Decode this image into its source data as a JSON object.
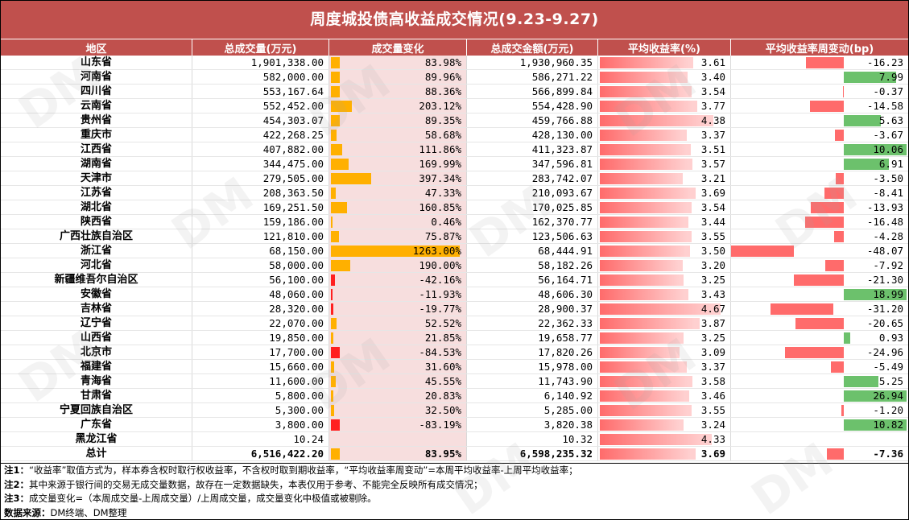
{
  "title": "周度城投债高收益成交情况(9.23-9.27)",
  "headers": [
    "地区",
    "总成交量(万元)",
    "成交量变化",
    "总成交金额(万元)",
    "平均收益率(%)",
    "平均收益率周变动(bp)"
  ],
  "rows": [
    {
      "region": "山东省",
      "volume": "1,901,338.00",
      "vol_change": "83.98%",
      "amount": "1,930,960.35",
      "yield": "3.61",
      "yield_change": "-16.23",
      "vc": 83.98,
      "y": 3.61,
      "yc": -16.23
    },
    {
      "region": "河南省",
      "volume": "582,000.00",
      "vol_change": "89.96%",
      "amount": "586,271.22",
      "yield": "3.40",
      "yield_change": "7.99",
      "vc": 89.96,
      "y": 3.4,
      "yc": 7.99
    },
    {
      "region": "四川省",
      "volume": "553,167.64",
      "vol_change": "88.36%",
      "amount": "566,899.84",
      "yield": "3.54",
      "yield_change": "-0.37",
      "vc": 88.36,
      "y": 3.54,
      "yc": -0.37
    },
    {
      "region": "云南省",
      "volume": "552,452.00",
      "vol_change": "203.12%",
      "amount": "554,428.90",
      "yield": "3.77",
      "yield_change": "-14.58",
      "vc": 203.12,
      "y": 3.77,
      "yc": -14.58
    },
    {
      "region": "贵州省",
      "volume": "454,303.07",
      "vol_change": "89.35%",
      "amount": "459,766.88",
      "yield": "4.38",
      "yield_change": "5.63",
      "vc": 89.35,
      "y": 4.38,
      "yc": 5.63
    },
    {
      "region": "重庆市",
      "volume": "422,268.25",
      "vol_change": "58.68%",
      "amount": "428,130.00",
      "yield": "3.37",
      "yield_change": "-3.67",
      "vc": 58.68,
      "y": 3.37,
      "yc": -3.67
    },
    {
      "region": "江西省",
      "volume": "407,882.00",
      "vol_change": "111.86%",
      "amount": "411,323.87",
      "yield": "3.51",
      "yield_change": "10.06",
      "vc": 111.86,
      "y": 3.51,
      "yc": 10.06
    },
    {
      "region": "湖南省",
      "volume": "344,475.00",
      "vol_change": "169.99%",
      "amount": "347,596.81",
      "yield": "3.57",
      "yield_change": "6.91",
      "vc": 169.99,
      "y": 3.57,
      "yc": 6.91
    },
    {
      "region": "天津市",
      "volume": "279,505.00",
      "vol_change": "397.34%",
      "amount": "283,742.07",
      "yield": "3.21",
      "yield_change": "-3.50",
      "vc": 397.34,
      "y": 3.21,
      "yc": -3.5
    },
    {
      "region": "江苏省",
      "volume": "208,363.50",
      "vol_change": "47.33%",
      "amount": "210,093.67",
      "yield": "3.69",
      "yield_change": "-8.41",
      "vc": 47.33,
      "y": 3.69,
      "yc": -8.41
    },
    {
      "region": "湖北省",
      "volume": "169,251.50",
      "vol_change": "160.85%",
      "amount": "170,025.85",
      "yield": "3.54",
      "yield_change": "-13.93",
      "vc": 160.85,
      "y": 3.54,
      "yc": -13.93
    },
    {
      "region": "陕西省",
      "volume": "159,186.00",
      "vol_change": "0.46%",
      "amount": "162,370.77",
      "yield": "3.44",
      "yield_change": "-16.48",
      "vc": 0.46,
      "y": 3.44,
      "yc": -16.48
    },
    {
      "region": "广西壮族自治区",
      "volume": "121,810.00",
      "vol_change": "75.87%",
      "amount": "123,506.63",
      "yield": "3.55",
      "yield_change": "-4.28",
      "vc": 75.87,
      "y": 3.55,
      "yc": -4.28
    },
    {
      "region": "浙江省",
      "volume": "68,150.00",
      "vol_change": "1263.00%",
      "amount": "68,444.91",
      "yield": "3.50",
      "yield_change": "-48.07",
      "vc": 1263.0,
      "y": 3.5,
      "yc": -48.07
    },
    {
      "region": "河北省",
      "volume": "58,000.00",
      "vol_change": "190.00%",
      "amount": "58,182.26",
      "yield": "3.20",
      "yield_change": "-7.92",
      "vc": 190.0,
      "y": 3.2,
      "yc": -7.92
    },
    {
      "region": "新疆维吾尔自治区",
      "volume": "56,100.00",
      "vol_change": "-42.16%",
      "amount": "56,164.71",
      "yield": "3.25",
      "yield_change": "-21.30",
      "vc": -42.16,
      "y": 3.25,
      "yc": -21.3
    },
    {
      "region": "安徽省",
      "volume": "48,060.00",
      "vol_change": "-11.93%",
      "amount": "48,606.30",
      "yield": "3.43",
      "yield_change": "18.99",
      "vc": -11.93,
      "y": 3.43,
      "yc": 18.99
    },
    {
      "region": "吉林省",
      "volume": "28,320.00",
      "vol_change": "-19.77%",
      "amount": "28,900.37",
      "yield": "4.67",
      "yield_change": "-31.20",
      "vc": -19.77,
      "y": 4.67,
      "yc": -31.2
    },
    {
      "region": "辽宁省",
      "volume": "22,070.00",
      "vol_change": "52.52%",
      "amount": "22,362.33",
      "yield": "3.87",
      "yield_change": "-20.65",
      "vc": 52.52,
      "y": 3.87,
      "yc": -20.65
    },
    {
      "region": "山西省",
      "volume": "19,850.00",
      "vol_change": "21.85%",
      "amount": "19,658.77",
      "yield": "3.25",
      "yield_change": "0.93",
      "vc": 21.85,
      "y": 3.25,
      "yc": 0.93
    },
    {
      "region": "北京市",
      "volume": "17,700.00",
      "vol_change": "-84.53%",
      "amount": "17,820.26",
      "yield": "3.09",
      "yield_change": "-24.96",
      "vc": -84.53,
      "y": 3.09,
      "yc": -24.96
    },
    {
      "region": "福建省",
      "volume": "15,660.00",
      "vol_change": "31.60%",
      "amount": "15,978.00",
      "yield": "3.37",
      "yield_change": "-5.49",
      "vc": 31.6,
      "y": 3.37,
      "yc": -5.49
    },
    {
      "region": "青海省",
      "volume": "11,600.00",
      "vol_change": "45.55%",
      "amount": "11,743.90",
      "yield": "3.58",
      "yield_change": "5.25",
      "vc": 45.55,
      "y": 3.58,
      "yc": 5.25
    },
    {
      "region": "甘肃省",
      "volume": "5,800.00",
      "vol_change": "20.83%",
      "amount": "6,140.92",
      "yield": "3.46",
      "yield_change": "26.94",
      "vc": 20.83,
      "y": 3.46,
      "yc": 26.94
    },
    {
      "region": "宁夏回族自治区",
      "volume": "5,300.00",
      "vol_change": "32.50%",
      "amount": "5,285.00",
      "yield": "3.55",
      "yield_change": "-1.20",
      "vc": 32.5,
      "y": 3.55,
      "yc": -1.2
    },
    {
      "region": "广东省",
      "volume": "3,800.00",
      "vol_change": "-83.19%",
      "amount": "3,820.38",
      "yield": "3.24",
      "yield_change": "10.82",
      "vc": -83.19,
      "y": 3.24,
      "yc": 10.82
    },
    {
      "region": "黑龙江省",
      "volume": "10.24",
      "vol_change": "",
      "amount": "10.32",
      "yield": "4.33",
      "yield_change": "",
      "vc": null,
      "y": 4.33,
      "yc": null
    }
  ],
  "total": {
    "region": "总计",
    "volume": "6,516,422.20",
    "vol_change": "83.95%",
    "amount": "6,598,235.32",
    "yield": "3.69",
    "yield_change": "-7.36",
    "vc": 83.95,
    "y": 3.69,
    "yc": -7.36
  },
  "notes": {
    "n1_label": "注1：",
    "n1": "“收益率”取值方式为，样本券含权时取行权收益率，不含权时取到期收益率，“平均收益率周变动”=本周平均收益率-上周平均收益率；",
    "n2_label": "注2：",
    "n2": "其中来源于银行间的交易无成交量数据，故存在一定数据缺失，本表仅用于参考、不能完全反映所有成交情况；",
    "n3_label": "注3：",
    "n3": "成交量变化=（本周成交量-上周成交量）/上周成交量，成交量变化中极值或被剔除。",
    "src_label": "数据来源：",
    "src": "DM终端、DM整理"
  },
  "watermark": "DM",
  "colors": {
    "header": "#c0504d",
    "vol_bar": "#ffb000",
    "neg_bar": "#ff2020",
    "yield_bar": "#ff6b6b",
    "chg_up": "#6cc16c",
    "chg_down": "#ff6b6b"
  }
}
